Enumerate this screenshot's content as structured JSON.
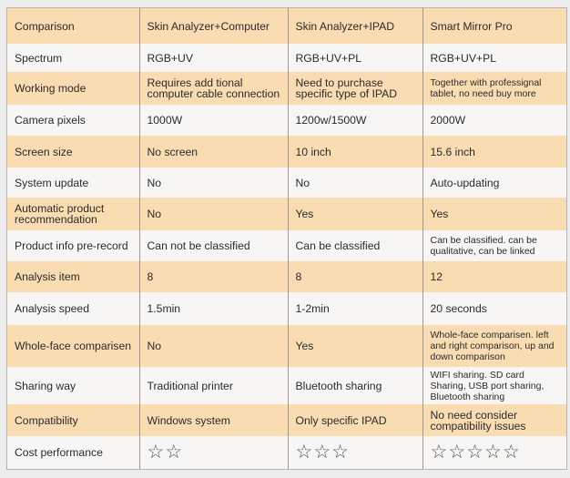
{
  "colors": {
    "orange_row": "#f9dcb1",
    "white_row": "#f7f6f5"
  },
  "header": [
    "Comparison",
    "Skin Analyzer+Computer",
    "Skin Analyzer+IPAD",
    "Smart Mirror Pro"
  ],
  "rows": [
    {
      "label": "Spectrum",
      "cells": [
        "RGB+UV",
        "RGB+UV+PL",
        "RGB+UV+PL"
      ]
    },
    {
      "label": "Working mode",
      "cells": [
        "Requires add tional computer cable connection",
        "Need to purchase specific type of IPAD",
        "Together with professignal tablet, no need buy more"
      ]
    },
    {
      "label": "Camera pixels",
      "cells": [
        "1000W",
        "1200w/1500W",
        "2000W"
      ]
    },
    {
      "label": "Screen size",
      "cells": [
        "No screen",
        "10 inch",
        "15.6 inch"
      ]
    },
    {
      "label": "System update",
      "cells": [
        "No",
        "No",
        "Auto-updating"
      ]
    },
    {
      "label": "Automatic product recommendation",
      "cells": [
        "No",
        "Yes",
        "Yes"
      ]
    },
    {
      "label": "Product info pre-record",
      "cells": [
        "Can not be classified",
        "Can be classified",
        "Can be classified. can be qualitative, can be linked"
      ]
    },
    {
      "label": "Analysis item",
      "cells": [
        "8",
        "8",
        "12"
      ]
    },
    {
      "label": "Analysis speed",
      "cells": [
        "1.5min",
        "1-2min",
        "20 seconds"
      ]
    },
    {
      "label": "Whole-face comparisen",
      "cells": [
        "No",
        "Yes",
        "Whole-face comparisen. left and right comparison, up and down comparison"
      ]
    },
    {
      "label": "Sharing way",
      "cells": [
        "Traditional printer",
        "Bluetooth sharing",
        "WIFI sharing. SD card Sharing, USB port sharing, Bluetooth sharing"
      ]
    },
    {
      "label": "Compatibility",
      "cells": [
        "Windows system",
        "Only specific IPAD",
        "No need consider compatibility issues"
      ]
    }
  ],
  "cost": {
    "label": "Cost performance",
    "stars": [
      2,
      3,
      5
    ],
    "icon": "star-outline-icon"
  }
}
